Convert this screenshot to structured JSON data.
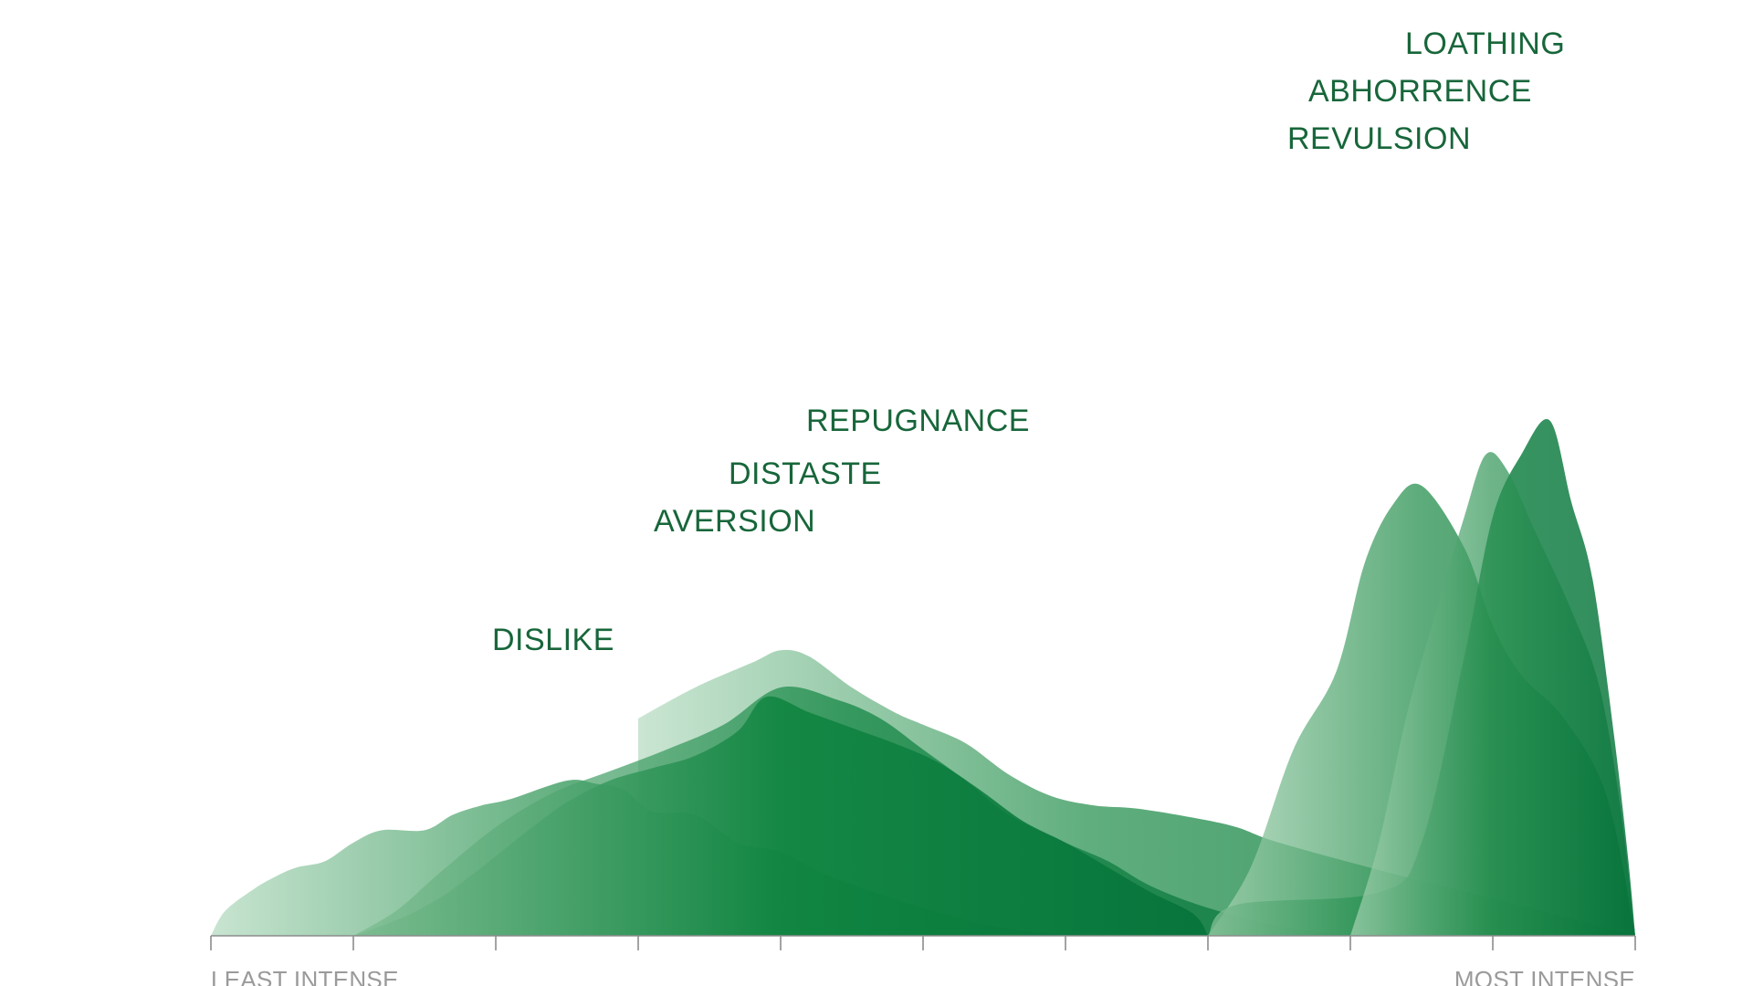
{
  "chart_data": {
    "type": "area",
    "title": "",
    "xlabel": "",
    "ylabel": "",
    "x_ticks": 10,
    "axis_labels": {
      "least": "LEAST INTENSE",
      "most": "MOST INTENSE"
    },
    "colors": {
      "fill_light": "#b7dcc2",
      "fill_mid": "#3c9a5f",
      "fill_dark": "#057a3a",
      "label": "#17663a",
      "axis": "#8c8c8c",
      "axis_text": "#9a9a9a"
    },
    "series": [
      {
        "name": "DISLIKE",
        "intensity": [
          [
            0,
            0
          ],
          [
            0.1,
            0.08
          ],
          [
            0.3,
            0.15
          ],
          [
            0.45,
            0.19
          ],
          [
            0.6,
            0.22
          ],
          [
            0.8,
            0.24
          ],
          [
            1,
            0.3
          ],
          [
            1.2,
            0.34
          ],
          [
            1.5,
            0.34
          ],
          [
            1.7,
            0.39
          ],
          [
            1.9,
            0.42
          ],
          [
            2.1,
            0.44
          ],
          [
            2.5,
            0.5
          ],
          [
            2.7,
            0.49
          ],
          [
            2.9,
            0.47
          ],
          [
            3.1,
            0.4
          ],
          [
            3.4,
            0.39
          ],
          [
            3.7,
            0.3
          ],
          [
            4,
            0.27
          ],
          [
            4.3,
            0.2
          ],
          [
            4.6,
            0.15
          ],
          [
            5,
            0.09
          ],
          [
            5.5,
            0.03
          ],
          [
            6,
            0
          ]
        ]
      },
      {
        "name": "AVERSION",
        "intensity": [
          [
            1,
            0
          ],
          [
            1.3,
            0.05
          ],
          [
            1.6,
            0.12
          ],
          [
            1.9,
            0.22
          ],
          [
            2.2,
            0.33
          ],
          [
            2.5,
            0.43
          ],
          [
            2.8,
            0.5
          ],
          [
            3.1,
            0.54
          ],
          [
            3.4,
            0.58
          ],
          [
            3.7,
            0.66
          ],
          [
            3.9,
            0.77
          ],
          [
            4.2,
            0.72
          ],
          [
            4.5,
            0.67
          ],
          [
            4.8,
            0.62
          ],
          [
            5.1,
            0.56
          ],
          [
            5.4,
            0.47
          ],
          [
            5.7,
            0.37
          ],
          [
            6,
            0.3
          ],
          [
            6.3,
            0.22
          ],
          [
            6.6,
            0.14
          ],
          [
            6.9,
            0.07
          ],
          [
            7,
            0
          ]
        ]
      },
      {
        "name": "DISTASTE",
        "intensity": [
          [
            1,
            0
          ],
          [
            1.3,
            0.08
          ],
          [
            1.6,
            0.2
          ],
          [
            2,
            0.35
          ],
          [
            2.4,
            0.46
          ],
          [
            2.8,
            0.53
          ],
          [
            3.2,
            0.6
          ],
          [
            3.6,
            0.68
          ],
          [
            4,
            0.8
          ],
          [
            4.4,
            0.76
          ],
          [
            4.7,
            0.7
          ],
          [
            5,
            0.6
          ],
          [
            5.3,
            0.5
          ],
          [
            5.6,
            0.39
          ],
          [
            6,
            0.3
          ],
          [
            6.3,
            0.24
          ],
          [
            6.6,
            0.16
          ],
          [
            7,
            0.09
          ],
          [
            7.5,
            0.03
          ],
          [
            8,
            0
          ]
        ]
      },
      {
        "name": "REPUGNANCE",
        "intensity": [
          [
            3,
            0.7
          ],
          [
            3.4,
            0.8
          ],
          [
            3.8,
            0.88
          ],
          [
            4,
            0.92
          ],
          [
            4.2,
            0.9
          ],
          [
            4.5,
            0.8
          ],
          [
            4.8,
            0.72
          ],
          [
            5,
            0.68
          ],
          [
            5.3,
            0.62
          ],
          [
            5.6,
            0.52
          ],
          [
            5.9,
            0.45
          ],
          [
            6.2,
            0.42
          ],
          [
            6.5,
            0.41
          ],
          [
            6.9,
            0.38
          ],
          [
            7.2,
            0.35
          ],
          [
            7.5,
            0.3
          ],
          [
            8.3,
            0.2
          ],
          [
            9,
            0.12
          ],
          [
            9.6,
            0.05
          ],
          [
            10,
            0
          ]
        ]
      },
      {
        "name": "REVULSION",
        "intensity": [
          [
            7,
            0
          ],
          [
            7.3,
            0.22
          ],
          [
            7.6,
            0.6
          ],
          [
            7.9,
            0.85
          ],
          [
            8.1,
            1.2
          ],
          [
            8.3,
            1.39
          ],
          [
            8.5,
            1.45
          ],
          [
            8.8,
            1.25
          ],
          [
            9,
            1.0
          ],
          [
            9.2,
            0.84
          ],
          [
            9.5,
            0.7
          ],
          [
            9.8,
            0.45
          ],
          [
            10,
            0
          ]
        ]
      },
      {
        "name": "ABHORRENCE",
        "intensity": [
          [
            8,
            0
          ],
          [
            8.2,
            0.3
          ],
          [
            8.4,
            0.72
          ],
          [
            8.6,
            1.04
          ],
          [
            8.8,
            1.35
          ],
          [
            8.95,
            1.55
          ],
          [
            9.1,
            1.5
          ],
          [
            9.3,
            1.3
          ],
          [
            9.55,
            1.05
          ],
          [
            9.75,
            0.8
          ],
          [
            9.9,
            0.4
          ],
          [
            10,
            0
          ]
        ]
      },
      {
        "name": "LOATHING",
        "intensity": [
          [
            7,
            0
          ],
          [
            7.2,
            0.1
          ],
          [
            8.2,
            0.14
          ],
          [
            8.5,
            0.3
          ],
          [
            8.8,
            0.9
          ],
          [
            9.0,
            1.35
          ],
          [
            9.2,
            1.55
          ],
          [
            9.4,
            1.66
          ],
          [
            9.55,
            1.4
          ],
          [
            9.7,
            1.15
          ],
          [
            9.85,
            0.65
          ],
          [
            9.95,
            0.25
          ],
          [
            10,
            0
          ]
        ]
      }
    ]
  }
}
